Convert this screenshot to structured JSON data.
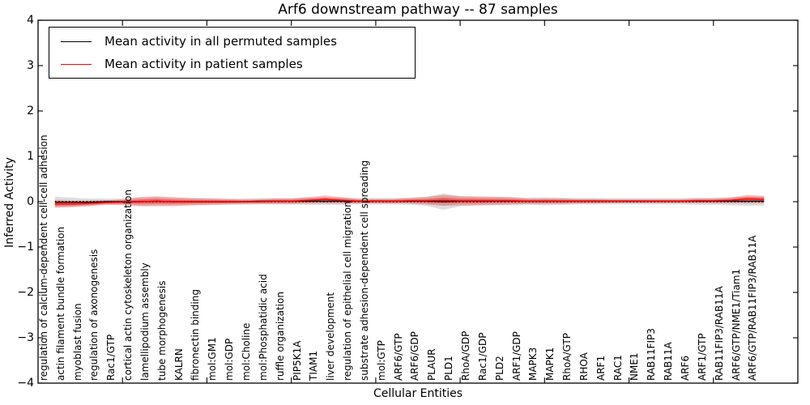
{
  "title": "Arf6 downstream pathway -- 87 samples",
  "axes": {
    "xlabel": "Cellular Entities",
    "ylabel": "Inferred Activity",
    "ytick_labels": [
      "4",
      "3",
      "2",
      "1",
      "0",
      "−1",
      "−2",
      "−3",
      "−4"
    ],
    "ytick_values": [
      4,
      3,
      2,
      1,
      0,
      -1,
      -2,
      -3,
      -4
    ],
    "xlim": [
      0,
      45
    ],
    "ylim": [
      -4,
      4
    ]
  },
  "legend": {
    "items": [
      {
        "label": "Mean activity in all permuted samples",
        "color": "#000000"
      },
      {
        "label": "Mean activity in patient samples",
        "color": "#ff0000"
      }
    ]
  },
  "chart_data": {
    "type": "line",
    "title": "Arf6 downstream pathway -- 87 samples",
    "xlabel": "Cellular Entities",
    "ylabel": "Inferred Activity",
    "ylim": [
      -4,
      4
    ],
    "xlim": [
      0,
      45
    ],
    "grid": false,
    "legend_position": "upper left",
    "zero_line": {
      "y": 0,
      "style": "dotted",
      "color": "#000000"
    },
    "categories": [
      "regulation of calcium-dependent cell-cell adhesion",
      "actin filament bundle formation",
      "myoblast fusion",
      "regulation of axonogenesis",
      "Rac1/GTP",
      "cortical actin cytoskeleton organization",
      "lamellipodium assembly",
      "tube morphogenesis",
      "KALRN",
      "fibronectin binding",
      "mol:GM1",
      "mol:GDP",
      "mol:Choline",
      "mol:Phosphatidic acid",
      "ruffle organization",
      "PIP5K1A",
      "TIAM1",
      "liver development",
      "regulation of epithelial cell migration",
      "substrate adhesion-dependent cell spreading",
      "mol:GTP",
      "ARF6/GTP",
      "ARF6/GDP",
      "PLAUR",
      "PLD1",
      "RhoA/GDP",
      "Rac1/GDP",
      "PLD2",
      "ARF1/GDP",
      "MAPK3",
      "MAPK1",
      "RhoA/GTP",
      "RHOA",
      "ARF1",
      "RAC1",
      "NME1",
      "RAB11FIP3",
      "RAB11A",
      "ARF6",
      "ARF1/GTP",
      "RAB11FIP3/RAB11A",
      "ARF6/GTP/NME1/Tiam1",
      "ARF6/GTP/RAB11FIP3/RAB11A"
    ],
    "series": [
      {
        "name": "Mean activity in all permuted samples",
        "color": "#000000",
        "line_style": "solid",
        "values": [
          -0.01,
          -0.01,
          -0.01,
          0,
          0,
          0,
          0.01,
          0,
          0,
          0,
          0,
          0,
          0.01,
          0.01,
          0.01,
          0.01,
          0.01,
          0.01,
          0.01,
          0.01,
          0.01,
          0.01,
          0.01,
          0,
          0.01,
          0.01,
          0.01,
          0.01,
          0.01,
          0.01,
          0.01,
          0.01,
          0.01,
          0.01,
          0.01,
          0.01,
          0.01,
          0.01,
          0.01,
          0.01,
          0.01,
          0.01,
          0.01
        ],
        "band_halfwidth": [
          0.12,
          0.1,
          0.08,
          0.07,
          0.07,
          0.09,
          0.09,
          0.08,
          0.08,
          0.08,
          0.07,
          0.07,
          0.07,
          0.07,
          0.07,
          0.08,
          0.08,
          0.08,
          0.07,
          0.07,
          0.07,
          0.08,
          0.1,
          0.18,
          0.11,
          0.09,
          0.09,
          0.09,
          0.08,
          0.09,
          0.08,
          0.07,
          0.07,
          0.07,
          0.07,
          0.07,
          0.07,
          0.07,
          0.08,
          0.08,
          0.09,
          0.1,
          0.1
        ],
        "band_color": "rgba(0,0,0,0.13)"
      },
      {
        "name": "Mean activity in patient samples",
        "color": "#ff0000",
        "line_style": "solid",
        "values": [
          -0.05,
          -0.05,
          -0.04,
          -0.02,
          -0.01,
          0,
          0.01,
          0,
          0,
          0,
          0,
          0,
          0,
          0.01,
          0.01,
          0.03,
          0.05,
          0.03,
          0.01,
          0.01,
          0.01,
          0.02,
          0.02,
          0.03,
          0.02,
          0.02,
          0.02,
          0.02,
          0.01,
          0.01,
          0.01,
          0.01,
          0.01,
          0.01,
          0.01,
          0.01,
          0.01,
          0.01,
          0.02,
          0.02,
          0.03,
          0.06,
          0.05
        ],
        "band_halfwidth": [
          0.08,
          0.07,
          0.06,
          0.05,
          0.06,
          0.1,
          0.11,
          0.1,
          0.08,
          0.07,
          0.06,
          0.05,
          0.05,
          0.06,
          0.06,
          0.07,
          0.09,
          0.07,
          0.05,
          0.05,
          0.05,
          0.06,
          0.08,
          0.12,
          0.1,
          0.1,
          0.09,
          0.08,
          0.06,
          0.06,
          0.06,
          0.05,
          0.05,
          0.04,
          0.04,
          0.04,
          0.04,
          0.04,
          0.05,
          0.05,
          0.06,
          0.09,
          0.08
        ],
        "band_color": "rgba(255,0,0,0.26)"
      }
    ]
  }
}
